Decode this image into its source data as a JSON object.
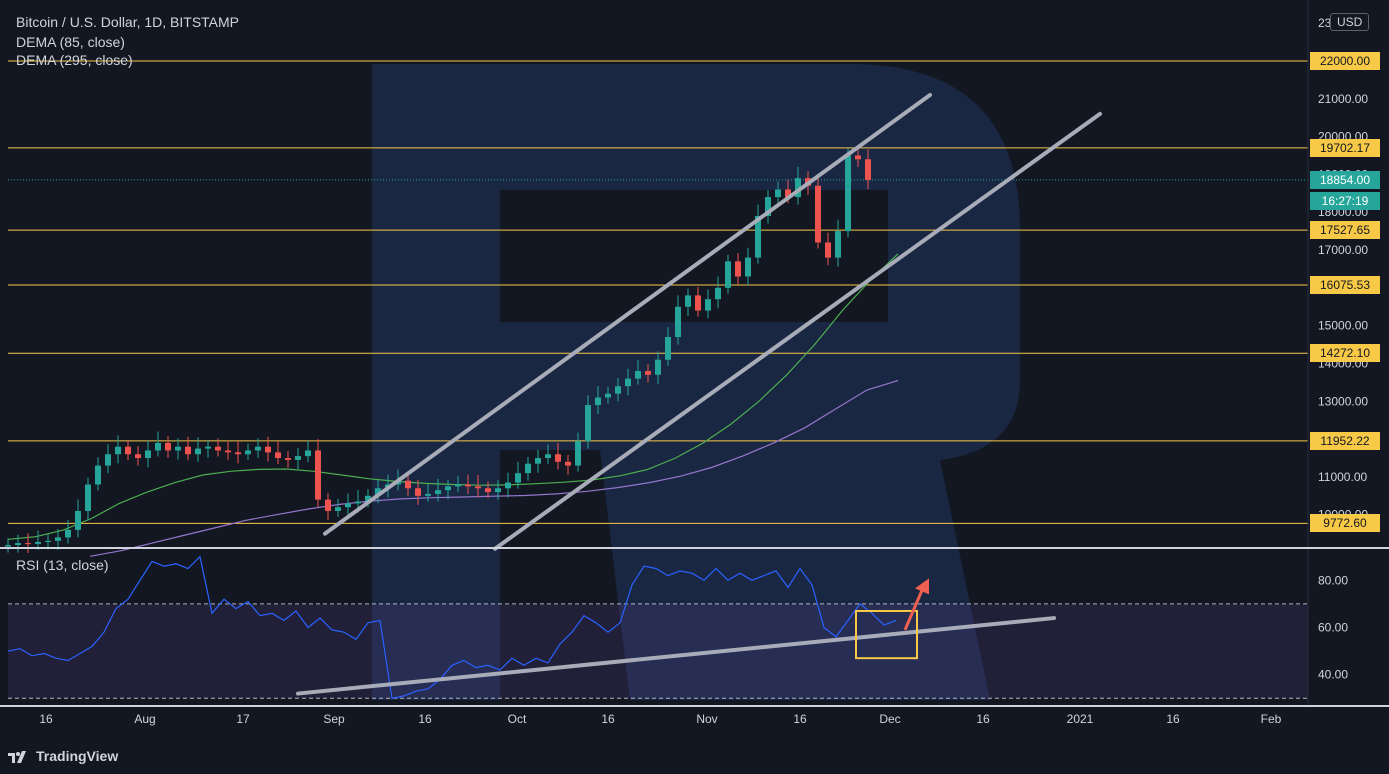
{
  "header": {
    "title": "Bitcoin / U.S. Dollar, 1D, BITSTAMP",
    "dema85": "DEMA (85, close)",
    "dema295": "DEMA (295, close)",
    "currency": "USD"
  },
  "rsi_label": "RSI (13, close)",
  "footer": {
    "brand": "TradingView"
  },
  "colors": {
    "background": "#131722",
    "up": "#26a69a",
    "down": "#ef5350",
    "level": "#f7c946",
    "dema85": "#4caf50",
    "dema295": "#9575cd",
    "rsi": "#2962ff",
    "trendline": "#a8acb8",
    "arrow": "#f06050"
  },
  "chart_data": [
    {
      "type": "candlestick",
      "title": "Bitcoin / U.S. Dollar, 1D, BITSTAMP",
      "ylim": [
        9200,
        23400
      ],
      "y_ticks": [
        "23000.00",
        "22000.00",
        "21000.00",
        "20000.00",
        "19000.00",
        "18000.00",
        "17000.00",
        "16000.00",
        "15000.00",
        "14000.00",
        "13000.00",
        "12000.00",
        "11000.00",
        "10000.00"
      ],
      "x_ticks": [
        "16",
        "Aug",
        "17",
        "Sep",
        "16",
        "Oct",
        "16",
        "Nov",
        "16",
        "Dec",
        "16",
        "2021",
        "16",
        "Feb"
      ],
      "levels": [
        "22000.00",
        "19702.17",
        "17527.65",
        "16075.53",
        "14272.10",
        "11952.22",
        "9772.60"
      ],
      "current_price": "18854.00",
      "countdown": "16:27:19",
      "series": [
        {
          "name": "DEMA (85, close)"
        },
        {
          "name": "DEMA (295, close)"
        }
      ],
      "close_path": [
        9200,
        9250,
        9230,
        9280,
        9310,
        9400,
        9600,
        10100,
        10800,
        11300,
        11600,
        11800,
        11600,
        11500,
        11700,
        11900,
        11700,
        11800,
        11600,
        11750,
        11800,
        11700,
        11650,
        11600,
        11700,
        11800,
        11650,
        11500,
        11450,
        11550,
        11700,
        10400,
        10100,
        10200,
        10300,
        10350,
        10500,
        10700,
        10800,
        10900,
        10700,
        10500,
        10550,
        10650,
        10750,
        10800,
        10750,
        10700,
        10600,
        10700,
        10850,
        11100,
        11350,
        11500,
        11600,
        11400,
        11300,
        11950,
        12900,
        13100,
        13200,
        13400,
        13600,
        13800,
        13700,
        14100,
        14700,
        15500,
        15800,
        15400,
        15700,
        16000,
        16700,
        16300,
        16800,
        17900,
        18400,
        18600,
        18400,
        18900,
        18700,
        17200,
        16800,
        17500,
        19500,
        19400,
        18854
      ],
      "dema85_path": [
        9350,
        9420,
        9600,
        9900,
        10300,
        10600,
        10850,
        11050,
        11150,
        11200,
        11210,
        11150,
        11050,
        10950,
        10880,
        10830,
        10800,
        10780,
        10790,
        10820,
        10860,
        10920,
        11030,
        11200,
        11500,
        11900,
        12400,
        13000,
        13700,
        14500,
        15400,
        16200,
        16900
      ],
      "dema295_path": [
        8900,
        9050,
        9250,
        9450,
        9650,
        9850,
        10000,
        10150,
        10270,
        10360,
        10420,
        10450,
        10470,
        10490,
        10510,
        10550,
        10620,
        10720,
        10850,
        11020,
        11250,
        11550,
        11900,
        12300,
        12800,
        13300,
        13550
      ],
      "trendlines": [
        {
          "from": [
            "Sep",
            9500
          ],
          "to": [
            "Dec",
            21100
          ]
        },
        {
          "from": [
            "Oct",
            9100
          ],
          "to": [
            "Dec",
            20600
          ]
        }
      ]
    },
    {
      "type": "line",
      "title": "RSI (13, close)",
      "ylim": [
        28,
        92
      ],
      "y_ticks": [
        "80.00",
        "60.00",
        "40.00"
      ],
      "band": [
        30,
        70
      ],
      "values": [
        50,
        51,
        48,
        49,
        47,
        46,
        49,
        52,
        58,
        68,
        72,
        80,
        88,
        86,
        87,
        85,
        90,
        66,
        72,
        68,
        71,
        65,
        66,
        63,
        67,
        60,
        64,
        59,
        58,
        55,
        62,
        63,
        30,
        31,
        33,
        34,
        38,
        44,
        46,
        43,
        44,
        42,
        47,
        44,
        47,
        45,
        53,
        58,
        65,
        62,
        58,
        62,
        78,
        86,
        85,
        82,
        84,
        83,
        80,
        85,
        80,
        83,
        80,
        82,
        84,
        77,
        85,
        78,
        60,
        56,
        63,
        70,
        66,
        61,
        63
      ],
      "trendline": {
        "from": 32,
        "to": 64
      },
      "arrow": {
        "from": 59,
        "to": 80
      }
    }
  ]
}
